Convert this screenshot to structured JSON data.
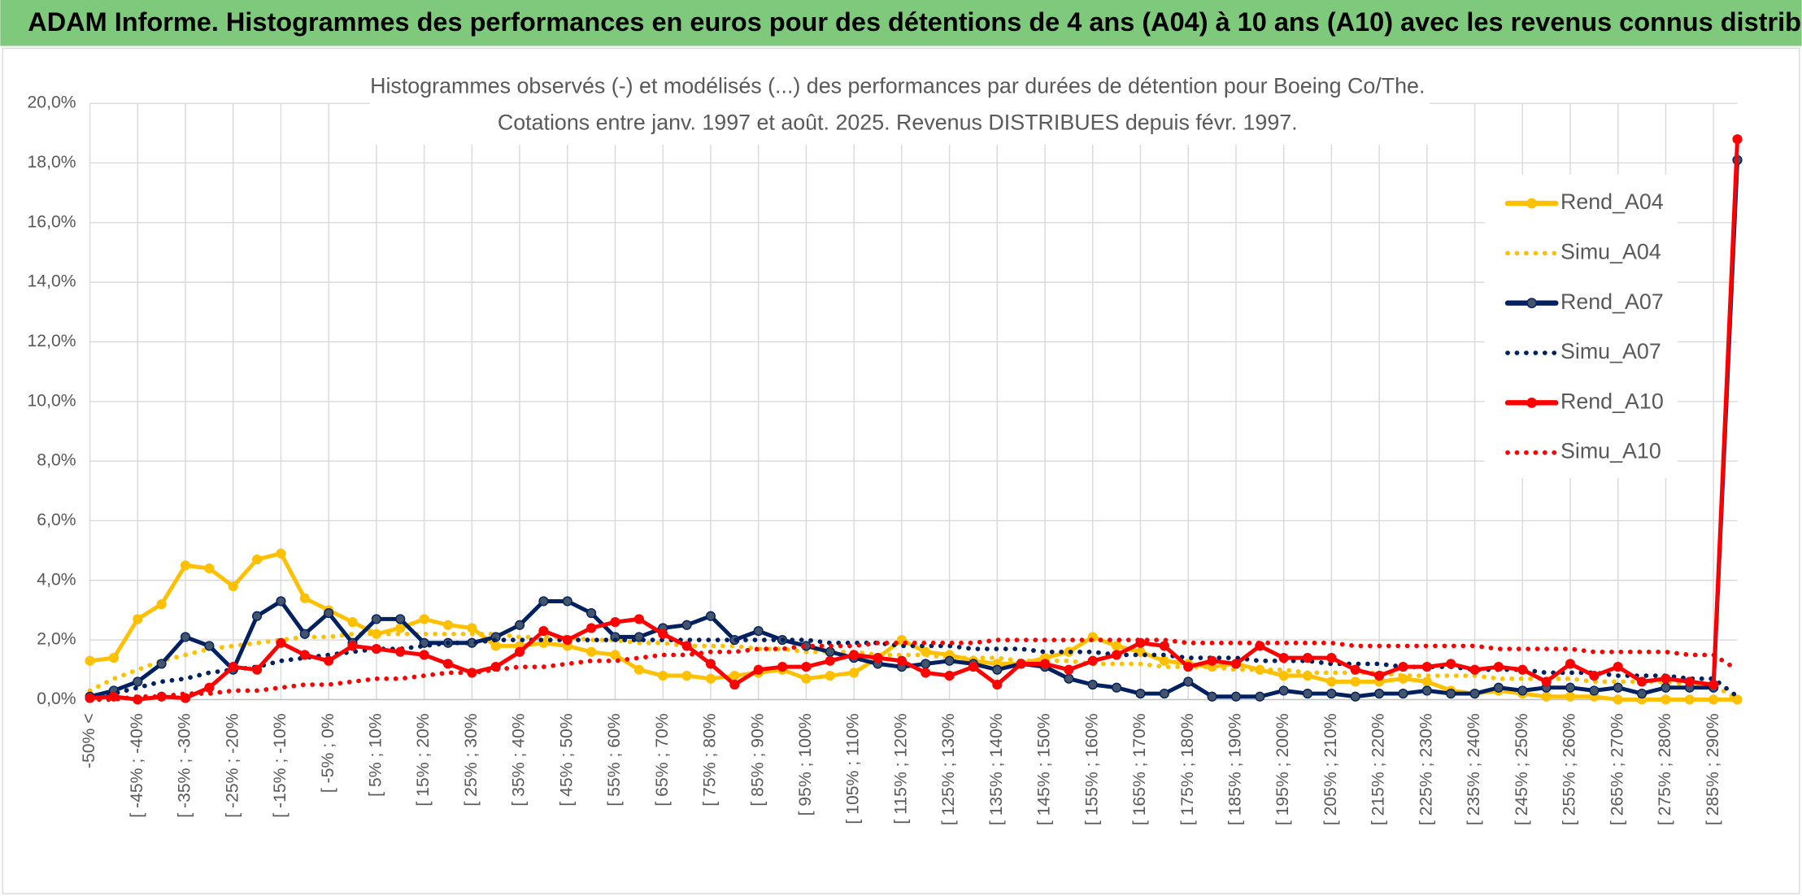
{
  "header": {
    "title": "ADAM Informe. Histogrammes des performances en euros pour des détentions de 4 ans (A04) à 10 ans (A10) avec les revenus connus distribués"
  },
  "chart_data": {
    "type": "line",
    "title": [
      "Histogrammes observés (-) et modélisés (...) des performances par durées de détention pour Boeing Co/The.",
      "Cotations entre janv. 1997 et août. 2025. Revenus DISTRIBUES depuis févr. 1997."
    ],
    "categories": [
      "-50% <",
      null,
      "[ -45% ; -40%",
      null,
      "[ -35% ; -30%",
      null,
      "[ -25% ; -20%",
      null,
      "[ -15% ; -10%",
      null,
      "[ -5% ; 0%",
      null,
      "[ 5% ; 10%",
      null,
      "[ 15% ; 20%",
      null,
      "[ 25% ; 30%",
      null,
      "[ 35% ; 40%",
      null,
      "[ 45% ; 50%",
      null,
      "[ 55% ; 60%",
      null,
      "[ 65% ; 70%",
      null,
      "[ 75% ; 80%",
      null,
      "[ 85% ; 90%",
      null,
      "[ 95% ; 100%",
      null,
      "[ 105% ; 110%",
      null,
      "[ 115% ; 120%",
      null,
      "[ 125% ; 130%",
      null,
      "[ 135% ; 140%",
      null,
      "[ 145% ; 150%",
      null,
      "[ 155% ; 160%",
      null,
      "[ 165% ; 170%",
      null,
      "[ 175% ; 180%",
      null,
      "[ 185% ; 190%",
      null,
      "[ 195% ; 200%",
      null,
      "[ 205% ; 210%",
      null,
      "[ 215% ; 220%",
      null,
      "[ 225% ; 230%",
      null,
      "[ 235% ; 240%",
      null,
      "[ 245% ; 250%",
      null,
      "[ 255% ; 260%",
      null,
      "[ 265% ; 270%",
      null,
      "[ 275% ; 280%",
      null,
      "[ 285% ; 290%",
      null
    ],
    "series": [
      {
        "name": "Rend_A04",
        "color": "#ffc000",
        "line_style": "solid",
        "markers": true,
        "values": [
          1.3,
          1.4,
          2.7,
          3.2,
          4.5,
          4.4,
          3.8,
          4.7,
          4.9,
          3.4,
          3.0,
          2.6,
          2.2,
          2.4,
          2.7,
          2.5,
          2.4,
          1.8,
          1.8,
          1.9,
          1.8,
          1.6,
          1.5,
          1.0,
          0.8,
          0.8,
          0.7,
          0.8,
          0.9,
          1.0,
          0.7,
          0.8,
          0.9,
          1.4,
          2.0,
          1.6,
          1.5,
          1.3,
          1.2,
          1.2,
          1.4,
          1.6,
          2.1,
          1.8,
          1.6,
          1.3,
          1.2,
          1.1,
          1.2,
          1.0,
          0.8,
          0.8,
          0.6,
          0.6,
          0.6,
          0.7,
          0.6,
          0.3,
          0.2,
          0.3,
          0.2,
          0.1,
          0.1,
          0.1,
          0.0,
          0.0,
          0.0,
          0.0,
          0.0,
          0.0
        ]
      },
      {
        "name": "Simu_A04",
        "color": "#ffc000",
        "line_style": "dotted",
        "markers": false,
        "values": [
          0.3,
          0.7,
          1.0,
          1.3,
          1.5,
          1.7,
          1.8,
          1.9,
          2.0,
          2.1,
          2.1,
          2.2,
          2.2,
          2.2,
          2.2,
          2.2,
          2.2,
          2.2,
          2.1,
          2.1,
          2.1,
          2.0,
          2.0,
          1.9,
          1.9,
          1.8,
          1.8,
          1.8,
          1.7,
          1.7,
          1.6,
          1.6,
          1.6,
          1.5,
          1.5,
          1.5,
          1.4,
          1.4,
          1.4,
          1.3,
          1.3,
          1.3,
          1.2,
          1.2,
          1.2,
          1.1,
          1.1,
          1.1,
          1.0,
          1.0,
          1.0,
          0.9,
          0.9,
          0.9,
          0.9,
          0.8,
          0.8,
          0.8,
          0.8,
          0.7,
          0.7,
          0.7,
          0.7,
          0.6,
          0.6,
          0.6,
          0.6,
          0.5,
          0.5,
          0.0
        ]
      },
      {
        "name": "Rend_A07",
        "color": "#002060",
        "line_style": "solid",
        "markers": true,
        "values": [
          0.1,
          0.3,
          0.6,
          1.2,
          2.1,
          1.8,
          1.0,
          2.8,
          3.3,
          2.2,
          2.9,
          1.9,
          2.7,
          2.7,
          1.9,
          1.9,
          1.9,
          2.1,
          2.5,
          3.3,
          3.3,
          2.9,
          2.1,
          2.1,
          2.4,
          2.5,
          2.8,
          2.0,
          2.3,
          2.0,
          1.8,
          1.6,
          1.4,
          1.2,
          1.1,
          1.2,
          1.3,
          1.2,
          1.0,
          1.2,
          1.1,
          0.7,
          0.5,
          0.4,
          0.2,
          0.2,
          0.6,
          0.1,
          0.1,
          0.1,
          0.3,
          0.2,
          0.2,
          0.1,
          0.2,
          0.2,
          0.3,
          0.2,
          0.2,
          0.4,
          0.3,
          0.4,
          0.4,
          0.3,
          0.4,
          0.2,
          0.4,
          0.4,
          0.4,
          18.1
        ]
      },
      {
        "name": "Simu_A07",
        "color": "#002060",
        "line_style": "dotted",
        "markers": false,
        "values": [
          0.1,
          0.2,
          0.4,
          0.6,
          0.7,
          0.9,
          1.0,
          1.1,
          1.3,
          1.4,
          1.5,
          1.6,
          1.7,
          1.7,
          1.8,
          1.9,
          1.9,
          2.0,
          2.0,
          2.0,
          2.0,
          2.0,
          2.0,
          2.0,
          2.0,
          2.0,
          2.0,
          2.0,
          2.0,
          2.0,
          2.0,
          1.9,
          1.9,
          1.9,
          1.8,
          1.8,
          1.8,
          1.7,
          1.7,
          1.7,
          1.6,
          1.6,
          1.6,
          1.5,
          1.5,
          1.5,
          1.4,
          1.4,
          1.4,
          1.3,
          1.3,
          1.3,
          1.2,
          1.2,
          1.2,
          1.1,
          1.1,
          1.1,
          1.0,
          1.0,
          1.0,
          0.9,
          0.9,
          0.9,
          0.8,
          0.8,
          0.8,
          0.7,
          0.7,
          0.1
        ]
      },
      {
        "name": "Rend_A10",
        "color": "#ff0000",
        "line_style": "solid",
        "markers": true,
        "values": [
          0.05,
          0.1,
          0.0,
          0.1,
          0.05,
          0.4,
          1.1,
          1.0,
          1.9,
          1.5,
          1.3,
          1.8,
          1.7,
          1.6,
          1.5,
          1.2,
          0.9,
          1.1,
          1.6,
          2.3,
          2.0,
          2.4,
          2.6,
          2.7,
          2.2,
          1.8,
          1.2,
          0.5,
          1.0,
          1.1,
          1.1,
          1.3,
          1.5,
          1.4,
          1.3,
          0.9,
          0.8,
          1.1,
          0.5,
          1.2,
          1.2,
          1.0,
          1.3,
          1.5,
          1.9,
          1.8,
          1.1,
          1.3,
          1.2,
          1.8,
          1.4,
          1.4,
          1.4,
          1.0,
          0.8,
          1.1,
          1.1,
          1.2,
          1.0,
          1.1,
          1.0,
          0.6,
          1.2,
          0.8,
          1.1,
          0.6,
          0.7,
          0.6,
          0.5,
          18.8
        ]
      },
      {
        "name": "Simu_A10",
        "color": "#ff0000",
        "line_style": "dotted",
        "markers": false,
        "values": [
          0.0,
          0.0,
          0.1,
          0.1,
          0.2,
          0.2,
          0.3,
          0.3,
          0.4,
          0.5,
          0.5,
          0.6,
          0.7,
          0.7,
          0.8,
          0.9,
          0.9,
          1.0,
          1.1,
          1.1,
          1.2,
          1.3,
          1.3,
          1.4,
          1.5,
          1.5,
          1.6,
          1.6,
          1.7,
          1.7,
          1.8,
          1.8,
          1.8,
          1.9,
          1.9,
          1.9,
          1.9,
          1.9,
          2.0,
          2.0,
          2.0,
          2.0,
          2.0,
          2.0,
          2.0,
          2.0,
          1.9,
          1.9,
          1.9,
          1.9,
          1.9,
          1.9,
          1.9,
          1.8,
          1.8,
          1.8,
          1.8,
          1.8,
          1.8,
          1.7,
          1.7,
          1.7,
          1.7,
          1.6,
          1.6,
          1.6,
          1.6,
          1.5,
          1.5,
          1.0
        ]
      }
    ],
    "ylim": [
      0,
      20
    ],
    "yticks": [
      {
        "value": 0,
        "label": "0,0%"
      },
      {
        "value": 2,
        "label": "2,0%"
      },
      {
        "value": 4,
        "label": "4,0%"
      },
      {
        "value": 6,
        "label": "6,0%"
      },
      {
        "value": 8,
        "label": "8,0%"
      },
      {
        "value": 10,
        "label": "10,0%"
      },
      {
        "value": 12,
        "label": "12,0%"
      },
      {
        "value": 14,
        "label": "14,0%"
      },
      {
        "value": 16,
        "label": "16,0%"
      },
      {
        "value": 18,
        "label": "18,0%"
      },
      {
        "value": 20,
        "label": "20,0%"
      }
    ],
    "grid": true,
    "legend": "right"
  }
}
